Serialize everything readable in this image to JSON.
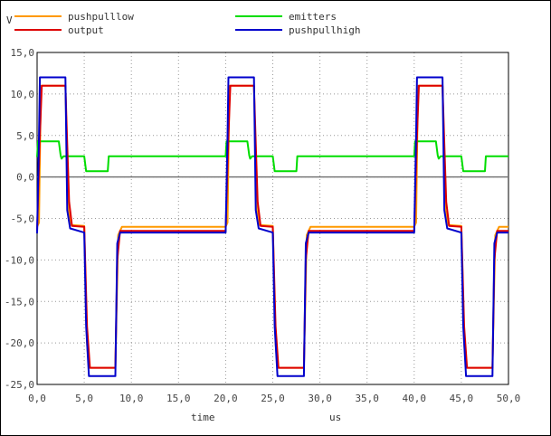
{
  "chart_data": {
    "type": "line",
    "xlabel": "time",
    "xunit": "us",
    "ylabel": "V",
    "xlim": [
      0,
      50
    ],
    "ylim": [
      -25,
      15
    ],
    "x_ticks": [
      "0,0",
      "5,0",
      "10,0",
      "15,0",
      "20,0",
      "25,0",
      "30,0",
      "35,0",
      "40,0",
      "45,0",
      "50,0"
    ],
    "y_ticks": [
      "15,0",
      "10,0",
      "5,0",
      "0,0",
      "-5,0",
      "-10,0",
      "-15,0",
      "-20,0",
      "-25,0"
    ],
    "grid": true,
    "legend": [
      {
        "name": "pushpulllow",
        "color": "#ff9900"
      },
      {
        "name": "emitters",
        "color": "#00dd00"
      },
      {
        "name": "output",
        "color": "#dd0000"
      },
      {
        "name": "pushpullhigh",
        "color": "#0000cc"
      }
    ],
    "series": [
      {
        "name": "pushpulllow",
        "color": "#ff9900",
        "points": [
          [
            0,
            -6
          ],
          [
            0.2,
            -5.5
          ],
          [
            0.4,
            11
          ],
          [
            3.0,
            11
          ],
          [
            3.3,
            -4
          ],
          [
            3.6,
            -5.8
          ],
          [
            5.0,
            -5.9
          ],
          [
            5.3,
            -20
          ],
          [
            5.5,
            -23
          ],
          [
            8.3,
            -23
          ],
          [
            8.6,
            -7
          ],
          [
            9.0,
            -6
          ],
          [
            20.0,
            -6
          ],
          [
            20.2,
            -5.5
          ],
          [
            20.4,
            11
          ],
          [
            23.0,
            11
          ],
          [
            23.3,
            -4
          ],
          [
            23.6,
            -5.8
          ],
          [
            25.0,
            -5.9
          ],
          [
            25.3,
            -20
          ],
          [
            25.5,
            -23
          ],
          [
            28.3,
            -23
          ],
          [
            28.6,
            -7
          ],
          [
            29.0,
            -6
          ],
          [
            40.0,
            -6
          ],
          [
            40.2,
            -5.5
          ],
          [
            40.4,
            11
          ],
          [
            43.0,
            11
          ],
          [
            43.3,
            -4
          ],
          [
            43.6,
            -5.8
          ],
          [
            45.0,
            -5.9
          ],
          [
            45.3,
            -20
          ],
          [
            45.5,
            -23
          ],
          [
            48.3,
            -23
          ],
          [
            48.6,
            -7
          ],
          [
            49.0,
            -6
          ],
          [
            50,
            -6
          ]
        ]
      },
      {
        "name": "emitters",
        "color": "#00dd00",
        "points": [
          [
            0,
            2.4
          ],
          [
            0.1,
            4.3
          ],
          [
            2.3,
            4.3
          ],
          [
            2.5,
            2.6
          ],
          [
            2.6,
            2.2
          ],
          [
            2.8,
            2.5
          ],
          [
            5.0,
            2.5
          ],
          [
            5.2,
            0.7
          ],
          [
            7.5,
            0.7
          ],
          [
            7.6,
            2.5
          ],
          [
            20.0,
            2.5
          ],
          [
            20.1,
            4.3
          ],
          [
            22.3,
            4.3
          ],
          [
            22.5,
            2.6
          ],
          [
            22.6,
            2.2
          ],
          [
            22.8,
            2.5
          ],
          [
            25.0,
            2.5
          ],
          [
            25.2,
            0.7
          ],
          [
            27.5,
            0.7
          ],
          [
            27.6,
            2.5
          ],
          [
            40.0,
            2.5
          ],
          [
            40.1,
            4.3
          ],
          [
            42.3,
            4.3
          ],
          [
            42.5,
            2.6
          ],
          [
            42.6,
            2.2
          ],
          [
            42.8,
            2.5
          ],
          [
            45.0,
            2.5
          ],
          [
            45.2,
            0.7
          ],
          [
            47.5,
            0.7
          ],
          [
            47.6,
            2.5
          ],
          [
            50,
            2.5
          ]
        ]
      },
      {
        "name": "output",
        "color": "#dd0000",
        "points": [
          [
            0,
            -6.5
          ],
          [
            0.3,
            5
          ],
          [
            0.5,
            11
          ],
          [
            3.0,
            11
          ],
          [
            3.2,
            4
          ],
          [
            3.4,
            -3
          ],
          [
            3.7,
            -5.9
          ],
          [
            5.0,
            -6
          ],
          [
            5.3,
            -18
          ],
          [
            5.6,
            -23
          ],
          [
            8.3,
            -23
          ],
          [
            8.5,
            -10
          ],
          [
            8.8,
            -6.5
          ],
          [
            20.0,
            -6.5
          ],
          [
            20.3,
            5
          ],
          [
            20.5,
            11
          ],
          [
            23.0,
            11
          ],
          [
            23.2,
            4
          ],
          [
            23.4,
            -3
          ],
          [
            23.7,
            -5.9
          ],
          [
            25.0,
            -6
          ],
          [
            25.3,
            -18
          ],
          [
            25.6,
            -23
          ],
          [
            28.3,
            -23
          ],
          [
            28.5,
            -10
          ],
          [
            28.8,
            -6.5
          ],
          [
            40.0,
            -6.5
          ],
          [
            40.3,
            5
          ],
          [
            40.5,
            11
          ],
          [
            43.0,
            11
          ],
          [
            43.2,
            4
          ],
          [
            43.4,
            -3
          ],
          [
            43.7,
            -5.9
          ],
          [
            45.0,
            -6
          ],
          [
            45.3,
            -18
          ],
          [
            45.6,
            -23
          ],
          [
            48.3,
            -23
          ],
          [
            48.5,
            -10
          ],
          [
            48.8,
            -6.5
          ],
          [
            50,
            -6.5
          ]
        ]
      },
      {
        "name": "pushpullhigh",
        "color": "#0000cc",
        "points": [
          [
            0,
            -6.8
          ],
          [
            0.2,
            5
          ],
          [
            0.3,
            12
          ],
          [
            3.0,
            12
          ],
          [
            3.2,
            -4
          ],
          [
            3.5,
            -6.2
          ],
          [
            5.0,
            -6.7
          ],
          [
            5.2,
            -18
          ],
          [
            5.5,
            -24
          ],
          [
            8.3,
            -24
          ],
          [
            8.5,
            -8
          ],
          [
            8.8,
            -6.7
          ],
          [
            20.0,
            -6.7
          ],
          [
            20.2,
            5
          ],
          [
            20.3,
            12
          ],
          [
            23.0,
            12
          ],
          [
            23.2,
            -4
          ],
          [
            23.5,
            -6.2
          ],
          [
            25.0,
            -6.7
          ],
          [
            25.2,
            -18
          ],
          [
            25.5,
            -24
          ],
          [
            28.3,
            -24
          ],
          [
            28.5,
            -8
          ],
          [
            28.8,
            -6.7
          ],
          [
            40.0,
            -6.7
          ],
          [
            40.2,
            5
          ],
          [
            40.3,
            12
          ],
          [
            43.0,
            12
          ],
          [
            43.2,
            -4
          ],
          [
            43.5,
            -6.2
          ],
          [
            45.0,
            -6.7
          ],
          [
            45.2,
            -18
          ],
          [
            45.5,
            -24
          ],
          [
            48.3,
            -24
          ],
          [
            48.5,
            -8
          ],
          [
            48.8,
            -6.7
          ],
          [
            50,
            -6.7
          ]
        ]
      }
    ]
  }
}
